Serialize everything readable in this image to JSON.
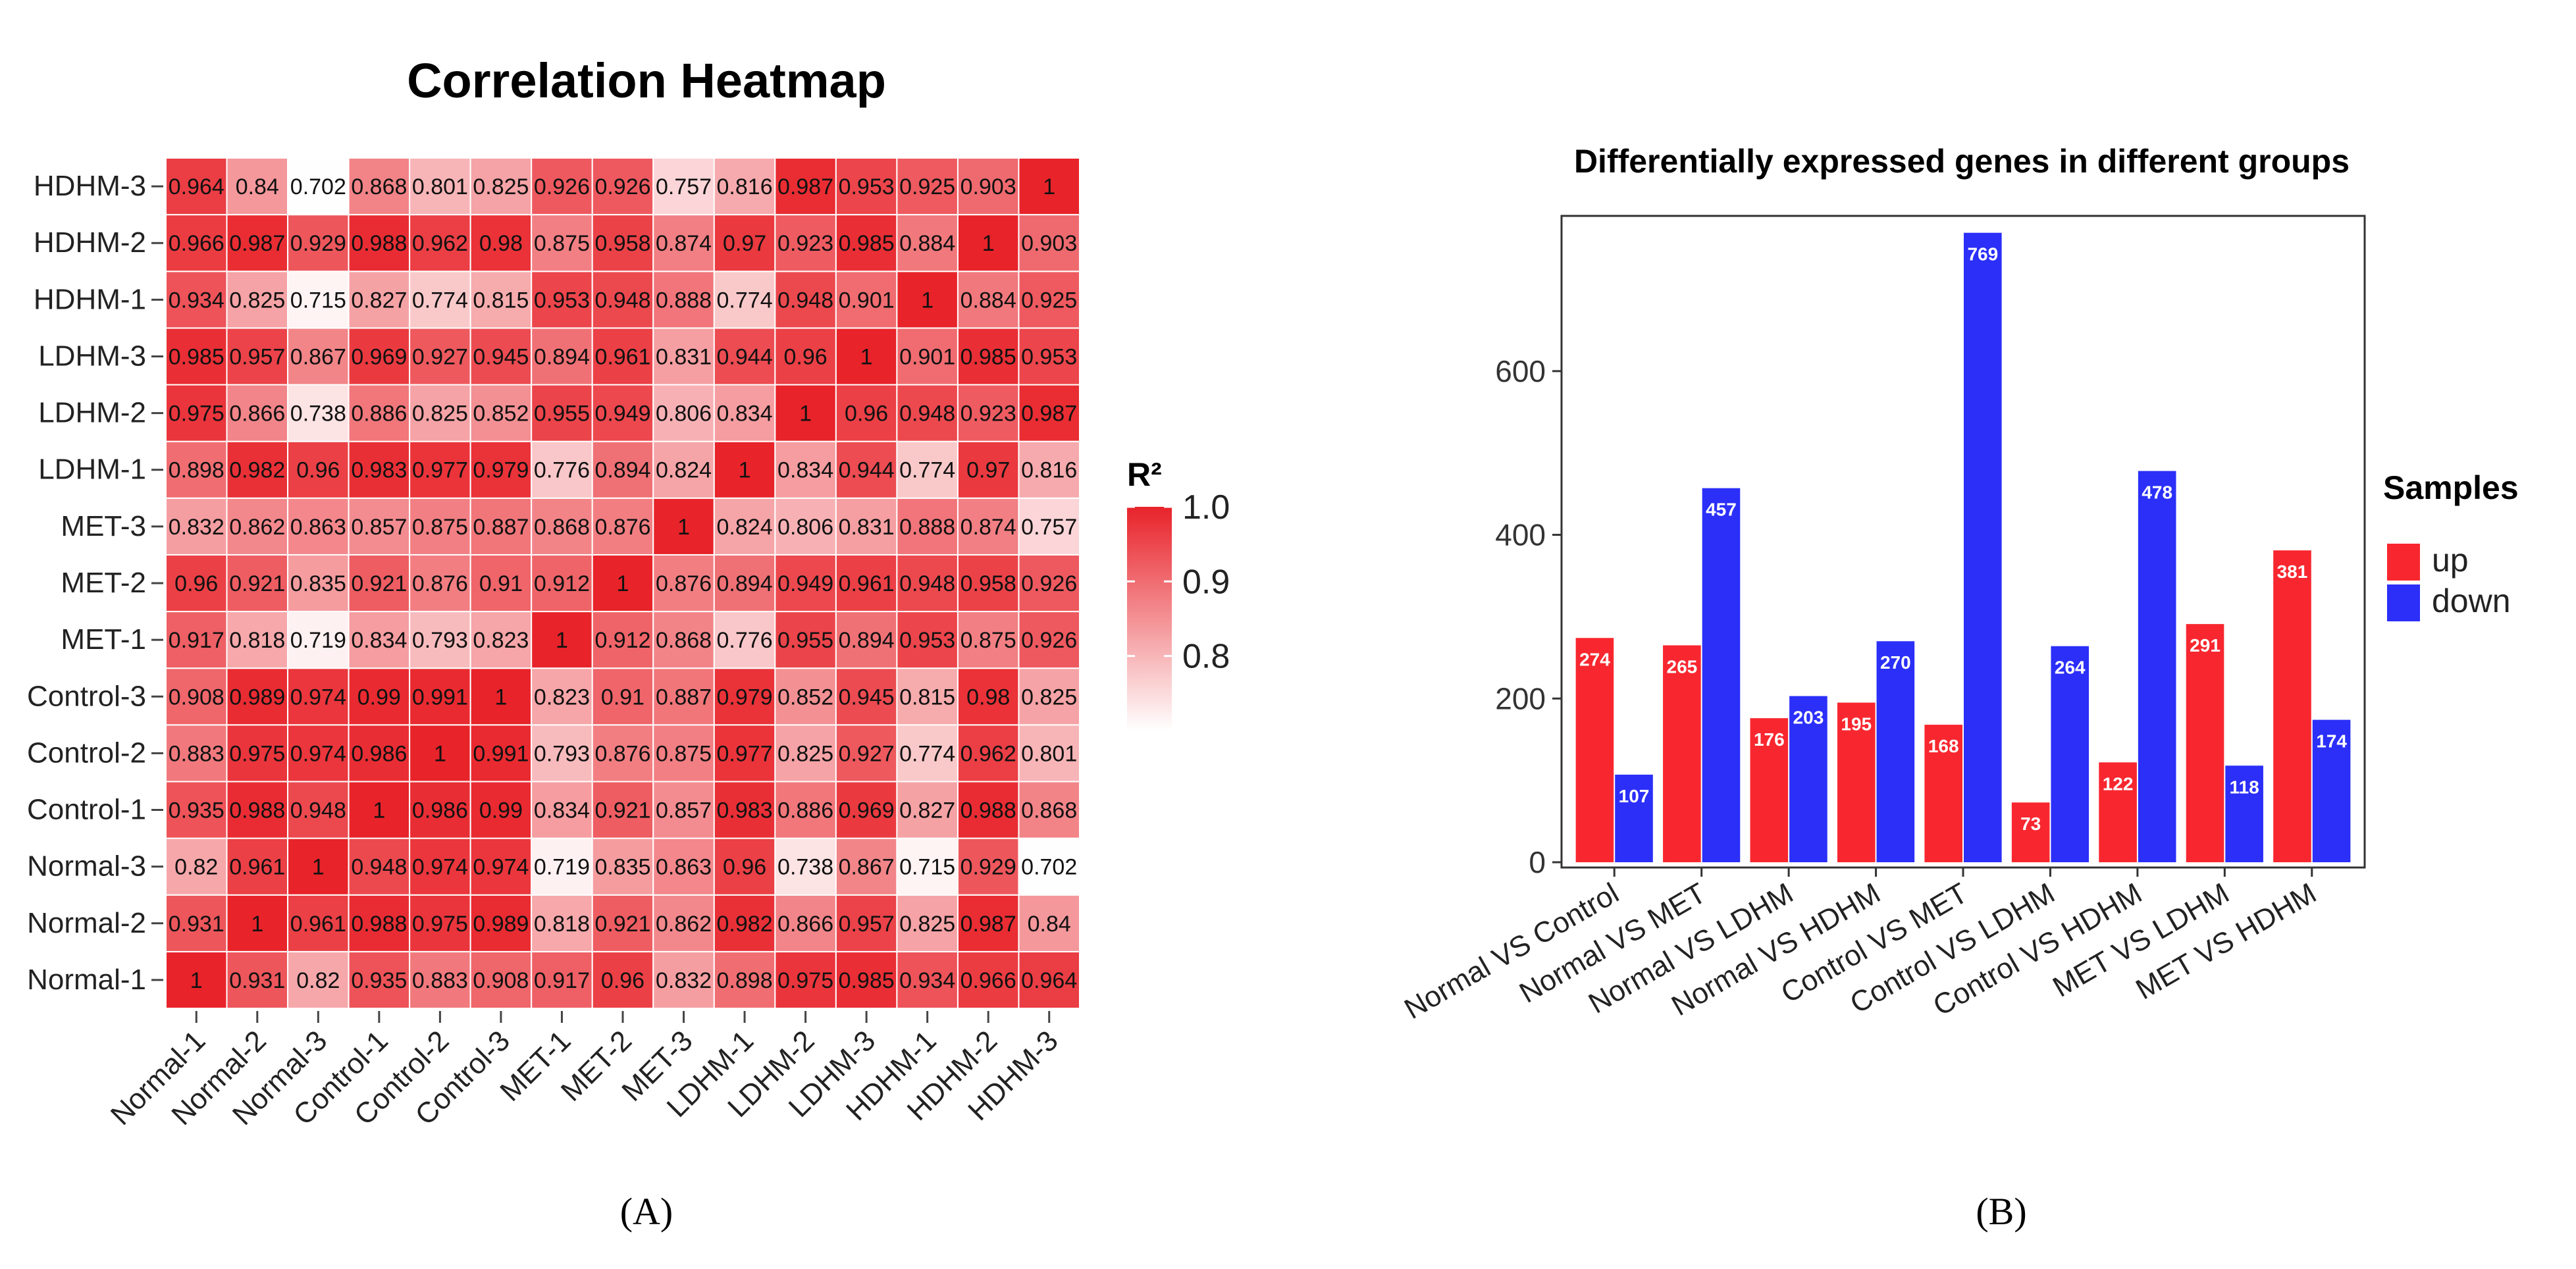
{
  "chart_data": [
    {
      "type": "heatmap",
      "title": "Correlation Heatmap",
      "panel_label": "(A)",
      "panel_letter": "A",
      "rows": [
        "Normal-1",
        "Normal-2",
        "Normal-3",
        "Control-1",
        "Control-2",
        "Control-3",
        "MET-1",
        "MET-2",
        "MET-3",
        "LDHM-1",
        "LDHM-2",
        "LDHM-3",
        "HDHM-1",
        "HDHM-2",
        "HDHM-3"
      ],
      "columns": [
        "Normal-1",
        "Normal-2",
        "Normal-3",
        "Control-1",
        "Control-2",
        "Control-3",
        "MET-1",
        "MET-2",
        "MET-3",
        "LDHM-1",
        "LDHM-2",
        "LDHM-3",
        "HDHM-1",
        "HDHM-2",
        "HDHM-3"
      ],
      "values": [
        [
          "1",
          "0.931",
          "0.82",
          "0.935",
          "0.883",
          "0.908",
          "0.917",
          "0.96",
          "0.832",
          "0.898",
          "0.975",
          "0.985",
          "0.934",
          "0.966",
          "0.964"
        ],
        [
          "0.931",
          "1",
          "0.961",
          "0.988",
          "0.975",
          "0.989",
          "0.818",
          "0.921",
          "0.862",
          "0.982",
          "0.866",
          "0.957",
          "0.825",
          "0.987",
          "0.84"
        ],
        [
          "0.82",
          "0.961",
          "1",
          "0.948",
          "0.974",
          "0.974",
          "0.719",
          "0.835",
          "0.863",
          "0.96",
          "0.738",
          "0.867",
          "0.715",
          "0.929",
          "0.702"
        ],
        [
          "0.935",
          "0.988",
          "0.948",
          "1",
          "0.986",
          "0.99",
          "0.834",
          "0.921",
          "0.857",
          "0.983",
          "0.886",
          "0.969",
          "0.827",
          "0.988",
          "0.868"
        ],
        [
          "0.883",
          "0.975",
          "0.974",
          "0.986",
          "1",
          "0.991",
          "0.793",
          "0.876",
          "0.875",
          "0.977",
          "0.825",
          "0.927",
          "0.774",
          "0.962",
          "0.801"
        ],
        [
          "0.908",
          "0.989",
          "0.974",
          "0.99",
          "0.991",
          "1",
          "0.823",
          "0.91",
          "0.887",
          "0.979",
          "0.852",
          "0.945",
          "0.815",
          "0.98",
          "0.825"
        ],
        [
          "0.917",
          "0.818",
          "0.719",
          "0.834",
          "0.793",
          "0.823",
          "1",
          "0.912",
          "0.868",
          "0.776",
          "0.955",
          "0.894",
          "0.953",
          "0.875",
          "0.926"
        ],
        [
          "0.96",
          "0.921",
          "0.835",
          "0.921",
          "0.876",
          "0.91",
          "0.912",
          "1",
          "0.876",
          "0.894",
          "0.949",
          "0.961",
          "0.948",
          "0.958",
          "0.926"
        ],
        [
          "0.832",
          "0.862",
          "0.863",
          "0.857",
          "0.875",
          "0.887",
          "0.868",
          "0.876",
          "1",
          "0.824",
          "0.806",
          "0.831",
          "0.888",
          "0.874",
          "0.757"
        ],
        [
          "0.898",
          "0.982",
          "0.96",
          "0.983",
          "0.977",
          "0.979",
          "0.776",
          "0.894",
          "0.824",
          "1",
          "0.834",
          "0.944",
          "0.774",
          "0.97",
          "0.816"
        ],
        [
          "0.975",
          "0.866",
          "0.738",
          "0.886",
          "0.825",
          "0.852",
          "0.955",
          "0.949",
          "0.806",
          "0.834",
          "1",
          "0.96",
          "0.948",
          "0.923",
          "0.987"
        ],
        [
          "0.985",
          "0.957",
          "0.867",
          "0.969",
          "0.927",
          "0.945",
          "0.894",
          "0.961",
          "0.831",
          "0.944",
          "0.96",
          "1",
          "0.901",
          "0.985",
          "0.953"
        ],
        [
          "0.934",
          "0.825",
          "0.715",
          "0.827",
          "0.774",
          "0.815",
          "0.953",
          "0.948",
          "0.888",
          "0.774",
          "0.948",
          "0.901",
          "1",
          "0.884",
          "0.925"
        ],
        [
          "0.966",
          "0.987",
          "0.929",
          "0.988",
          "0.962",
          "0.98",
          "0.875",
          "0.958",
          "0.874",
          "0.97",
          "0.923",
          "0.985",
          "0.884",
          "1",
          "0.903"
        ],
        [
          "0.964",
          "0.84",
          "0.702",
          "0.868",
          "0.801",
          "0.825",
          "0.926",
          "0.926",
          "0.757",
          "0.816",
          "0.987",
          "0.953",
          "0.925",
          "0.903",
          "1"
        ]
      ],
      "color_scale": {
        "low": "#ffffff",
        "high": "#e8232a",
        "domain": [
          0.7,
          1.0
        ]
      },
      "legend": {
        "title": "R²",
        "ticks": [
          {
            "value": 1.0,
            "label": "1.0"
          },
          {
            "value": 0.9,
            "label": "0.9"
          },
          {
            "value": 0.8,
            "label": "0.8"
          }
        ]
      }
    },
    {
      "type": "bar",
      "title": "Differentially expressed genes in different groups",
      "panel_label": "(B)",
      "panel_letter": "B",
      "categories": [
        "Normal VS Control",
        "Normal VS MET",
        "Normal VS LDHM",
        "Normal VS HDHM",
        "Control VS MET",
        "Control VS LDHM",
        "Control VS HDHM",
        "MET VS LDHM",
        "MET VS HDHM"
      ],
      "series": [
        {
          "name": "up",
          "color": "#f8272f",
          "values": [
            274,
            265,
            176,
            195,
            168,
            73,
            122,
            291,
            381
          ]
        },
        {
          "name": "down",
          "color": "#2b2ff8",
          "values": [
            107,
            457,
            203,
            270,
            769,
            264,
            478,
            118,
            174
          ]
        }
      ],
      "ylim": [
        0,
        780
      ],
      "yticks": [
        0,
        200,
        400,
        600
      ],
      "xlabel": "",
      "ylabel": "",
      "legend": {
        "title": "Samples",
        "position": "right"
      }
    }
  ]
}
